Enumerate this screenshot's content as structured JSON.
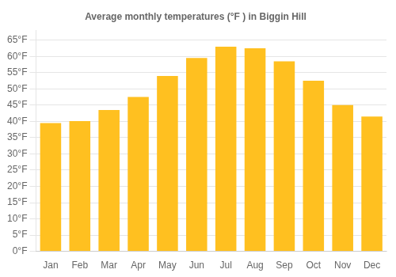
{
  "chart_data": {
    "type": "bar",
    "title": "Average monthly temperatures (°F ) in Biggin Hill",
    "categories": [
      "Jan",
      "Feb",
      "Mar",
      "Apr",
      "May",
      "Jun",
      "Jul",
      "Aug",
      "Sep",
      "Oct",
      "Nov",
      "Dec"
    ],
    "values": [
      39.5,
      40.1,
      43.5,
      47.5,
      54.0,
      59.5,
      63.0,
      62.5,
      58.5,
      52.5,
      45.0,
      41.5
    ],
    "color": "#FFC020",
    "ylim": [
      0,
      68
    ],
    "yticks": [
      {
        "value": 0,
        "label": "0°F"
      },
      {
        "value": 5,
        "label": "5°F"
      },
      {
        "value": 10,
        "label": "10°F"
      },
      {
        "value": 15,
        "label": "15°F"
      },
      {
        "value": 20,
        "label": "20°F"
      },
      {
        "value": 25,
        "label": "25°F"
      },
      {
        "value": 30,
        "label": "30°F"
      },
      {
        "value": 35,
        "label": "35°F"
      },
      {
        "value": 40,
        "label": "40°F"
      },
      {
        "value": 45,
        "label": "45°F"
      },
      {
        "value": 50,
        "label": "50°F"
      },
      {
        "value": 55,
        "label": "55°F"
      },
      {
        "value": 60,
        "label": "60°F"
      },
      {
        "value": 65,
        "label": "65°F"
      }
    ],
    "grid": true
  }
}
